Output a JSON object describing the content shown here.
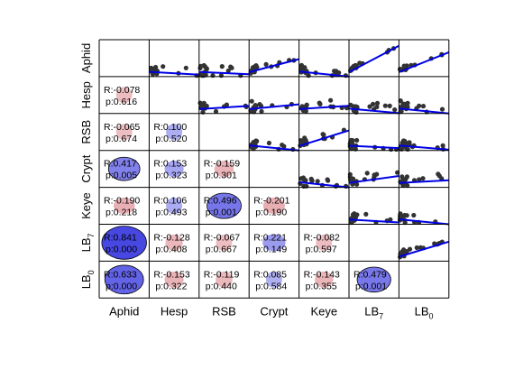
{
  "chart_data": {
    "type": "scatter",
    "title": "",
    "variables": [
      {
        "name": "Aphid",
        "sub": ""
      },
      {
        "name": "Hesp",
        "sub": ""
      },
      {
        "name": "RSB",
        "sub": ""
      },
      {
        "name": "Crypt",
        "sub": ""
      },
      {
        "name": "Keye",
        "sub": ""
      },
      {
        "name": "LB",
        "sub": "7"
      },
      {
        "name": "LB",
        "sub": "0"
      }
    ],
    "correlations": [
      {
        "row": 1,
        "col": 0,
        "r": -0.078,
        "p": 0.616
      },
      {
        "row": 2,
        "col": 0,
        "r": -0.065,
        "p": 0.674
      },
      {
        "row": 2,
        "col": 1,
        "r": 0.1,
        "p": 0.52
      },
      {
        "row": 3,
        "col": 0,
        "r": 0.417,
        "p": 0.005
      },
      {
        "row": 3,
        "col": 1,
        "r": 0.153,
        "p": 0.323
      },
      {
        "row": 3,
        "col": 2,
        "r": -0.159,
        "p": 0.301
      },
      {
        "row": 4,
        "col": 0,
        "r": -0.19,
        "p": 0.218
      },
      {
        "row": 4,
        "col": 1,
        "r": 0.106,
        "p": 0.493
      },
      {
        "row": 4,
        "col": 2,
        "r": 0.496,
        "p": 0.001
      },
      {
        "row": 4,
        "col": 3,
        "r": -0.201,
        "p": 0.19
      },
      {
        "row": 5,
        "col": 0,
        "r": 0.841,
        "p": 0.0
      },
      {
        "row": 5,
        "col": 1,
        "r": -0.128,
        "p": 0.408
      },
      {
        "row": 5,
        "col": 2,
        "r": -0.067,
        "p": 0.667
      },
      {
        "row": 5,
        "col": 3,
        "r": 0.221,
        "p": 0.149
      },
      {
        "row": 5,
        "col": 4,
        "r": -0.082,
        "p": 0.597
      },
      {
        "row": 6,
        "col": 0,
        "r": 0.633,
        "p": 0.0
      },
      {
        "row": 6,
        "col": 1,
        "r": -0.153,
        "p": 0.322
      },
      {
        "row": 6,
        "col": 2,
        "r": -0.119,
        "p": 0.44
      },
      {
        "row": 6,
        "col": 3,
        "r": 0.085,
        "p": 0.584
      },
      {
        "row": 6,
        "col": 4,
        "r": -0.143,
        "p": 0.355
      },
      {
        "row": 6,
        "col": 5,
        "r": 0.479,
        "p": 0.001
      }
    ],
    "colors": {
      "positive": "#1a1adb",
      "negative": "#c8404a",
      "points": "#333333",
      "fit_line": "#0000e6"
    }
  }
}
